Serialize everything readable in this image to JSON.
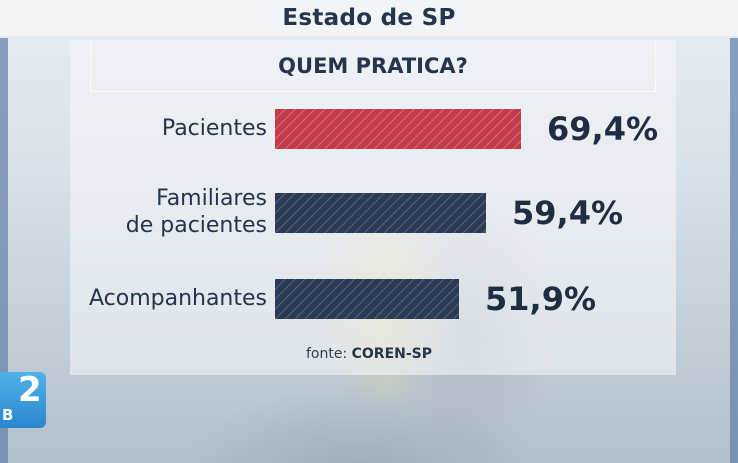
{
  "header": {
    "title": "Estado de SP"
  },
  "chart_data": {
    "type": "bar",
    "orientation": "horizontal",
    "title": "QUEM PRATICA?",
    "categories": [
      "Pacientes",
      "Familiares de pacientes",
      "Acompanhantes"
    ],
    "category_lines": [
      [
        "Pacientes"
      ],
      [
        "Familiares",
        "de pacientes"
      ],
      [
        "Acompanhantes"
      ]
    ],
    "values": [
      69.4,
      59.4,
      51.9
    ],
    "value_labels": [
      "69,4%",
      "59,4%",
      "51,9%"
    ],
    "unit": "%",
    "bar_colors": [
      "#c23a4b",
      "#2b3a55",
      "#2b3a55"
    ],
    "bar_pattern": "diagonal-hatch",
    "xlim": [
      0,
      100
    ],
    "grid": false,
    "legend": "none"
  },
  "source": {
    "prefix": "fonte:",
    "name": "COREN-SP"
  },
  "broadcaster_logo": {
    "number": "2",
    "suffix": "B",
    "color": "#3a9ee0"
  }
}
